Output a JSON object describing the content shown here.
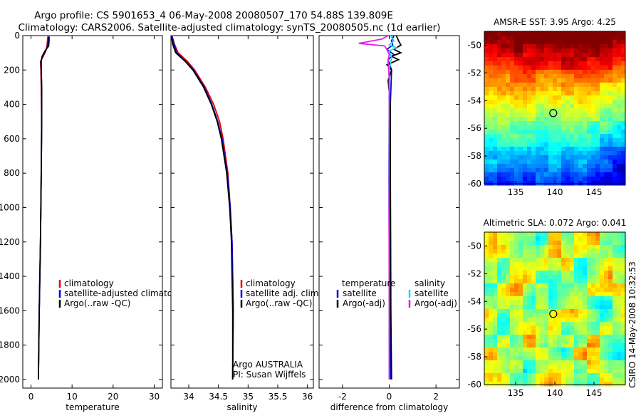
{
  "header": {
    "title_line1": "Argo profile: CS 5901653_4 06-May-2008 20080507_170 54.88S 139.809E",
    "title_line2": "Climatology: CARS2006. Satellite-adjusted climatology: synTS_20080505.nc (1d earlier)"
  },
  "credit": "CSIRO 14-May-2008 10:32:53",
  "colors": {
    "climatology": "#e00000",
    "satellite": "#0000e0",
    "argo": "#000000",
    "sal_satellite": "#20d8e0",
    "argo_adj": "#e020e0"
  },
  "chart_data": [
    {
      "type": "line",
      "name": "temperature",
      "xlabel": "temperature",
      "xlim": [
        -2,
        32
      ],
      "ylim": [
        2050,
        0
      ],
      "xticks": [
        0,
        10,
        20,
        30
      ],
      "xtick_labels": [
        "0",
        "10",
        "20",
        "30"
      ],
      "yticks": [
        0,
        200,
        400,
        600,
        800,
        1000,
        1200,
        1400,
        1600,
        1800,
        2000
      ],
      "ytick_labels": [
        "0",
        "200",
        "400",
        "600",
        "800",
        "1000",
        "1200",
        "1400",
        "1600",
        "1800",
        "2000"
      ],
      "legend": [
        "climatology",
        "satellite-adjusted climatology",
        "Argo(..raw -QC)"
      ],
      "series": [
        {
          "name": "climatology",
          "depth": [
            5,
            30,
            60,
            90,
            120,
            150,
            200,
            300,
            500,
            800,
            1200,
            1600,
            2000
          ],
          "values": [
            4.1,
            4.0,
            3.9,
            3.6,
            3.0,
            2.3,
            2.4,
            2.5,
            2.6,
            2.5,
            2.3,
            2.0,
            1.8
          ]
        },
        {
          "name": "satellite-adjusted climatology",
          "depth": [
            5,
            30,
            60,
            90,
            120,
            150,
            200,
            300,
            500,
            800,
            1200,
            1600,
            2000
          ],
          "values": [
            4.3,
            4.2,
            4.0,
            3.5,
            2.8,
            2.4,
            2.5,
            2.6,
            2.6,
            2.5,
            2.3,
            2.0,
            1.8
          ]
        },
        {
          "name": "Argo(..raw -QC)",
          "depth": [
            5,
            30,
            60,
            90,
            120,
            150,
            200,
            300,
            500,
            800,
            1200,
            1600,
            2000
          ],
          "values": [
            4.4,
            4.4,
            4.3,
            3.4,
            2.7,
            2.5,
            2.5,
            2.6,
            2.6,
            2.5,
            2.3,
            2.0,
            1.8
          ]
        }
      ]
    },
    {
      "type": "line",
      "name": "salinity",
      "xlabel": "salinity",
      "xlim": [
        33.7,
        36.1
      ],
      "ylim": [
        2050,
        0
      ],
      "xticks": [
        34,
        34.5,
        35,
        35.5,
        36
      ],
      "xtick_labels": [
        "34",
        "34.5",
        "35",
        "35.5",
        "36"
      ],
      "legend": [
        "climatology",
        "satellite adj. clim.",
        "Argo(..raw -QC)"
      ],
      "annotation": [
        "Argo AUSTRALIA",
        "PI: Susan Wijffels"
      ],
      "series": [
        {
          "name": "climatology",
          "depth": [
            5,
            50,
            100,
            150,
            200,
            300,
            400,
            500,
            600,
            800,
            1000,
            1200,
            1400,
            1600,
            2000
          ],
          "values": [
            33.72,
            33.76,
            33.82,
            33.98,
            34.1,
            34.28,
            34.42,
            34.52,
            34.58,
            34.66,
            34.7,
            34.73,
            34.74,
            34.75,
            34.74
          ]
        },
        {
          "name": "satellite adj. clim.",
          "depth": [
            5,
            50,
            100,
            150,
            200,
            300,
            400,
            500,
            600,
            800,
            1000,
            1200,
            1400,
            1600,
            2000
          ],
          "values": [
            33.72,
            33.75,
            33.8,
            33.95,
            34.08,
            34.26,
            34.39,
            34.49,
            34.56,
            34.65,
            34.7,
            34.73,
            34.74,
            34.75,
            34.74
          ]
        },
        {
          "name": "Argo(..raw -QC)",
          "depth": [
            5,
            50,
            100,
            150,
            200,
            300,
            400,
            500,
            600,
            800,
            1000,
            1200,
            1400,
            1600,
            2000
          ],
          "values": [
            33.71,
            33.73,
            33.78,
            33.94,
            34.07,
            34.25,
            34.38,
            34.48,
            34.55,
            34.64,
            34.69,
            34.72,
            34.73,
            34.74,
            34.74
          ]
        }
      ]
    },
    {
      "type": "line",
      "name": "difference",
      "xlabel": "difference from climatology",
      "xlim": [
        -3,
        3
      ],
      "ylim": [
        2050,
        0
      ],
      "xticks": [
        -2,
        0,
        2
      ],
      "xtick_labels": [
        "-2",
        "0",
        "2"
      ],
      "legend_left_title": "temperature",
      "legend_left": [
        "satellite",
        "Argo(-adj)"
      ],
      "legend_right_title": "salinity",
      "legend_right": [
        "satellite",
        "Argo(-adj)"
      ],
      "series": [
        {
          "name": "temperature satellite",
          "depth": [
            0,
            30,
            55,
            80,
            110,
            140,
            200,
            400,
            800,
            1200,
            1600,
            2000
          ],
          "values": [
            0.2,
            0.1,
            0.15,
            -0.1,
            0.2,
            -0.05,
            0.1,
            0.05,
            0.03,
            0.05,
            0.05,
            0.06
          ]
        },
        {
          "name": "temperature Argo(-adj)",
          "depth": [
            0,
            30,
            55,
            80,
            100,
            120,
            140,
            170,
            200,
            260,
            400,
            800,
            1200,
            1600,
            2000
          ],
          "values": [
            0.3,
            0.4,
            0.5,
            0.2,
            0.5,
            0.1,
            0.4,
            -0.1,
            0.1,
            -0.05,
            0.05,
            0.05,
            0.06,
            0.07,
            0.1
          ]
        },
        {
          "name": "salinity satellite",
          "depth": [
            0,
            30,
            55,
            70,
            90,
            130,
            200,
            400,
            800,
            1200,
            1600,
            2000
          ],
          "values": [
            0.05,
            0.2,
            0.0,
            0.3,
            0.0,
            0.1,
            0.0,
            0.0,
            -0.02,
            0.0,
            0.0,
            0.0
          ]
        },
        {
          "name": "salinity Argo(-adj)",
          "depth": [
            0,
            20,
            45,
            60,
            80,
            110,
            150,
            250,
            600,
            1000,
            1600,
            2000
          ],
          "values": [
            -0.05,
            -0.3,
            -1.3,
            -0.2,
            -0.1,
            0.0,
            -0.05,
            0.0,
            0.0,
            -0.01,
            0.0,
            0.0
          ]
        }
      ]
    },
    {
      "type": "heatmap",
      "name": "sst",
      "title": "AMSR-E SST: 3.95  Argo: 4.25",
      "xlim": [
        131,
        149
      ],
      "ylim": [
        -60,
        -49
      ],
      "xticks": [
        135,
        140,
        145
      ],
      "xtick_labels": [
        "135",
        "140",
        "145"
      ],
      "yticks": [
        -50,
        -52,
        -54,
        -56,
        -58,
        -60
      ],
      "ytick_labels": [
        "-50",
        "-52",
        "-54",
        "-56",
        "-58",
        "-60"
      ],
      "marker": {
        "lon": 139.8,
        "lat": -54.9
      }
    },
    {
      "type": "heatmap",
      "name": "sla",
      "title": "Altimetric SLA: 0.072  Argo: 0.041",
      "xlim": [
        131,
        149
      ],
      "ylim": [
        -60,
        -49
      ],
      "xticks": [
        135,
        140,
        145
      ],
      "xtick_labels": [
        "135",
        "140",
        "145"
      ],
      "yticks": [
        -50,
        -52,
        -54,
        -56,
        -58,
        -60
      ],
      "ytick_labels": [
        "-50",
        "-52",
        "-54",
        "-56",
        "-58",
        "-60"
      ],
      "marker": {
        "lon": 139.8,
        "lat": -54.9
      }
    }
  ]
}
